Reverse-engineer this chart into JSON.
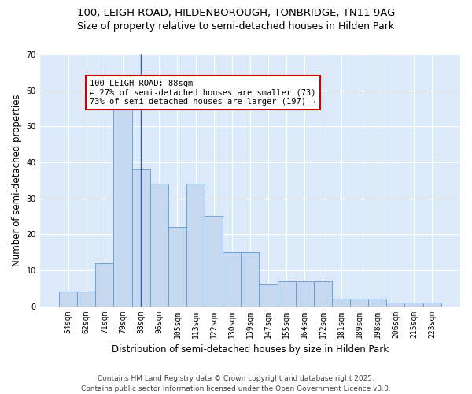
{
  "title_line1": "100, LEIGH ROAD, HILDENBOROUGH, TONBRIDGE, TN11 9AG",
  "title_line2": "Size of property relative to semi-detached houses in Hilden Park",
  "xlabel": "Distribution of semi-detached houses by size in Hilden Park",
  "ylabel": "Number of semi-detached properties",
  "categories": [
    "54sqm",
    "62sqm",
    "71sqm",
    "79sqm",
    "88sqm",
    "96sqm",
    "105sqm",
    "113sqm",
    "122sqm",
    "130sqm",
    "139sqm",
    "147sqm",
    "155sqm",
    "164sqm",
    "172sqm",
    "181sqm",
    "189sqm",
    "198sqm",
    "206sqm",
    "215sqm",
    "223sqm"
  ],
  "values": [
    4,
    4,
    12,
    55,
    38,
    34,
    22,
    34,
    25,
    15,
    15,
    6,
    7,
    7,
    7,
    2,
    2,
    2,
    1,
    1,
    1
  ],
  "bar_color": "#c5d8f0",
  "bar_edge_color": "#5b9bd5",
  "highlight_bar_index": 4,
  "highlight_line_color": "#2b5ea7",
  "annotation_text": "100 LEIGH ROAD: 88sqm\n← 27% of semi-detached houses are smaller (73)\n73% of semi-detached houses are larger (197) →",
  "annotation_box_color": "#ffffff",
  "annotation_box_edge_color": "#cc0000",
  "ylim": [
    0,
    70
  ],
  "yticks": [
    0,
    10,
    20,
    30,
    40,
    50,
    60,
    70
  ],
  "plot_bg_color": "#dce9f8",
  "fig_bg_color": "#ffffff",
  "grid_color": "#ffffff",
  "footer_line1": "Contains HM Land Registry data © Crown copyright and database right 2025.",
  "footer_line2": "Contains public sector information licensed under the Open Government Licence v3.0.",
  "title_fontsize": 9.5,
  "subtitle_fontsize": 9,
  "axis_label_fontsize": 8.5,
  "tick_fontsize": 7,
  "annotation_fontsize": 7.5,
  "footer_fontsize": 6.5
}
